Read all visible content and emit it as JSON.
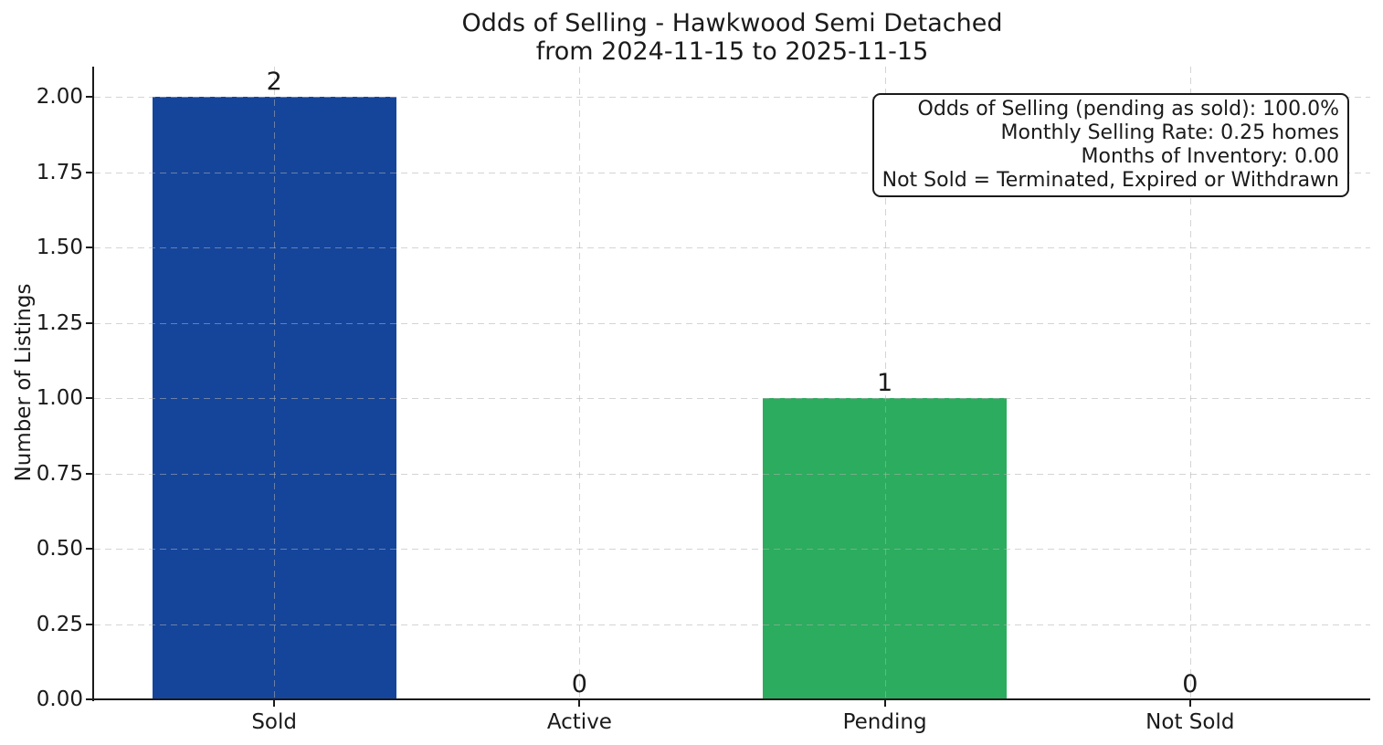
{
  "figure": {
    "title_line1": "Odds of Selling - Hawkwood Semi Detached",
    "title_line2": "from 2024-11-15 to 2025-11-15"
  },
  "chart_data": {
    "type": "bar",
    "title": "Odds of Selling - Hawkwood Semi Detached\nfrom 2024-11-15 to 2025-11-15",
    "categories": [
      "Sold",
      "Active",
      "Pending",
      "Not Sold"
    ],
    "values": [
      2,
      0,
      1,
      0
    ],
    "bar_labels": [
      "2",
      "0",
      "1",
      "0"
    ],
    "bar_colors": [
      "#15459B",
      "none",
      "#2CAC5E",
      "none"
    ],
    "xlabel": "",
    "ylabel": "Number of Listings",
    "ylim": [
      0,
      2.1
    ],
    "yticks": [
      0.0,
      0.25,
      0.5,
      0.75,
      1.0,
      1.25,
      1.5,
      1.75,
      2.0
    ],
    "ytick_labels": [
      "0.00",
      "0.25",
      "0.50",
      "0.75",
      "1.00",
      "1.25",
      "1.50",
      "1.75",
      "2.00"
    ],
    "grid": {
      "visible": true,
      "style": "dashed",
      "axes": "both"
    },
    "legend": "none",
    "annotations": [
      "Odds of Selling (pending as sold): 100.0%",
      "Monthly Selling Rate: 0.25 homes",
      "Months of Inventory: 0.00",
      "Not Sold = Terminated, Expired or Withdrawn"
    ],
    "colors": {
      "sold_bar": "#15459B",
      "pending_bar": "#2CAC5E",
      "grid": "#B0B0B0",
      "axis": "#1A1A1A",
      "text": "#1A1A1A",
      "background": "#FFFFFF"
    }
  }
}
